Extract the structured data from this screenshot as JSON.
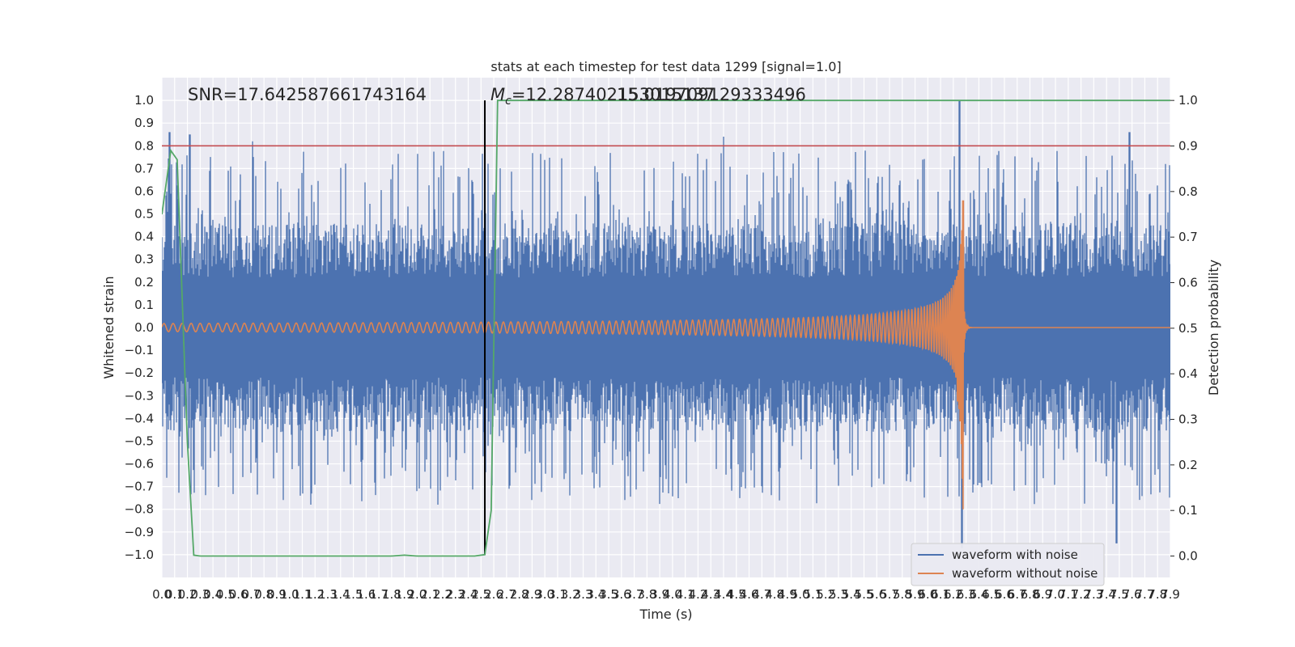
{
  "chart_data": {
    "type": "line",
    "title": "stats at each timestep for test data 1299 [signal=1.0]",
    "xlabel": "Time (s)",
    "ylabel": "Whitened strain",
    "ylabel_right": "Detection probability",
    "xlim": [
      0,
      7.9
    ],
    "ylim": [
      -1.1,
      1.1
    ],
    "ylim_right": [
      -0.047,
      1.05
    ],
    "x_ticks": [
      0.0,
      0.1,
      0.2,
      0.3,
      0.4,
      0.5,
      0.6,
      0.7,
      0.8,
      0.9,
      1.0,
      1.1,
      1.2,
      1.3,
      1.4,
      1.5,
      1.6,
      1.7,
      1.8,
      1.9,
      2.0,
      2.1,
      2.2,
      2.3,
      2.4,
      2.5,
      2.6,
      2.7,
      2.8,
      2.9,
      3.0,
      3.1,
      3.2,
      3.3,
      3.4,
      3.5,
      3.6,
      3.7,
      3.8,
      3.9,
      4.0,
      4.1,
      4.2,
      4.3,
      4.4,
      4.5,
      4.6,
      4.7,
      4.8,
      4.9,
      5.0,
      5.1,
      5.2,
      5.3,
      5.4,
      5.5,
      5.6,
      5.7,
      5.8,
      5.9,
      6.0,
      6.1,
      6.2,
      6.3,
      6.4,
      6.5,
      6.6,
      6.7,
      6.8,
      6.9,
      7.0,
      7.1,
      7.2,
      7.3,
      7.4,
      7.5,
      7.6,
      7.7,
      7.8,
      7.9
    ],
    "y_ticks_left": [
      -1.0,
      -0.9,
      -0.8,
      -0.7,
      -0.6,
      -0.5,
      -0.4,
      -0.3,
      -0.2,
      -0.1,
      0.0,
      0.1,
      0.2,
      0.3,
      0.4,
      0.5,
      0.6,
      0.7,
      0.8,
      0.9,
      1.0
    ],
    "y_ticks_right": [
      0.0,
      0.1,
      0.2,
      0.3,
      0.4,
      0.5,
      0.6,
      0.7,
      0.8,
      0.9,
      1.0
    ],
    "grid": true,
    "legend_position": "lower-right",
    "series": [
      {
        "name": "waveform with noise",
        "color": "#4c72b0",
        "axis": "left",
        "description_values": {
          "typical_envelope": 0.4,
          "peaks": [
            [
              0.06,
              0.86
            ],
            [
              0.22,
              0.85
            ],
            [
              0.71,
              0.82
            ],
            [
              4.4,
              0.84
            ],
            [
              6.25,
              1.0
            ],
            [
              6.27,
              -0.97
            ],
            [
              7.48,
              -0.95
            ],
            [
              7.58,
              0.86
            ]
          ]
        }
      },
      {
        "name": "waveform without noise",
        "color": "#dd8452",
        "axis": "left",
        "chirp": {
          "t_merge": 6.28,
          "amp_start": 0.018,
          "amp_max_pos": 0.56,
          "amp_max_neg": -0.8
        }
      },
      {
        "name": "",
        "color": "#55a868",
        "axis": "right",
        "x": [
          0.0,
          0.07,
          0.12,
          0.2,
          0.25,
          0.3,
          1.0,
          1.8,
          1.9,
          2.0,
          2.45,
          2.53,
          2.58,
          2.63,
          2.7,
          7.9
        ],
        "y": [
          0.75,
          0.89,
          0.87,
          0.25,
          0.002,
          0.0,
          0.0,
          0.0,
          0.002,
          0.0,
          0.0,
          0.003,
          0.1,
          1.0,
          1.0,
          1.0
        ]
      }
    ],
    "hlines": [
      {
        "y": 0.8,
        "color": "#c44e52",
        "axis": "left"
      }
    ],
    "vlines": [
      {
        "x": 2.53,
        "color": "#000000",
        "ymin": -1.0,
        "ymax": 1.0
      }
    ],
    "annotations": {
      "snr": "SNR=17.642587661743164",
      "mc_symbol": "M",
      "mc_sub": "c",
      "mc_value": "=12.287402153015137",
      "overlap": "15.019709129333496"
    }
  }
}
